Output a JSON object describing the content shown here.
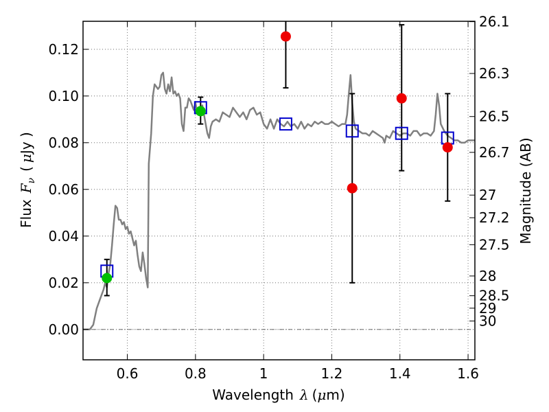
{
  "chart_data": {
    "type": "scatter",
    "xlabel_text": "Wavelength",
    "xlabel_symbol": "λ",
    "xlabel_unit_open": "(",
    "xlabel_unit_mu": "μ",
    "xlabel_unit_rest": "m)",
    "ylabel_text": "Flux",
    "ylabel_symbol": "F",
    "ylabel_sub": "ν",
    "ylabel_unit_open": "(",
    "ylabel_unit_mu": "μ",
    "ylabel_unit_rest": "Jy )",
    "y2label": "Magnitude (AB)",
    "xlim": [
      0.47,
      1.62
    ],
    "ylim": [
      -0.013,
      0.132
    ],
    "grid": true,
    "xticks": [
      0.6,
      0.8,
      1.0,
      1.2,
      1.4,
      1.6
    ],
    "xtick_labels": [
      "0.6",
      "0.8",
      "1",
      "1.2",
      "1.4",
      "1.6"
    ],
    "yticks": [
      0.0,
      0.02,
      0.04,
      0.06,
      0.08,
      0.1,
      0.12
    ],
    "ytick_labels": [
      "0.00",
      "0.02",
      "0.04",
      "0.06",
      "0.08",
      "0.10",
      "0.12"
    ],
    "mag_ticks": [
      {
        "label": "26.1",
        "mag": 26.1
      },
      {
        "label": "26.3",
        "mag": 26.3
      },
      {
        "label": "26.5",
        "mag": 26.5
      },
      {
        "label": "26.7",
        "mag": 26.7
      },
      {
        "label": "27",
        "mag": 27.0
      },
      {
        "label": "27.2",
        "mag": 27.2
      },
      {
        "label": "27.5",
        "mag": 27.5
      },
      {
        "label": "28",
        "mag": 28.0
      },
      {
        "label": "28.5",
        "mag": 28.5
      },
      {
        "label": "29",
        "mag": 29.0
      },
      {
        "label": "30",
        "mag": 30.0
      }
    ],
    "zero_line": 0.0,
    "colors": {
      "sed": "#808080",
      "model_box": "#0000cc",
      "detection": "#00c000",
      "nondetection": "#ee0000",
      "errorbar": "#000000",
      "grid": "#555555"
    },
    "sed_model": [
      [
        0.47,
        0.0
      ],
      [
        0.49,
        0.0
      ],
      [
        0.5,
        0.002
      ],
      [
        0.51,
        0.009
      ],
      [
        0.52,
        0.013
      ],
      [
        0.53,
        0.017
      ],
      [
        0.535,
        0.02
      ],
      [
        0.54,
        0.018
      ],
      [
        0.545,
        0.024
      ],
      [
        0.55,
        0.028
      ],
      [
        0.555,
        0.036
      ],
      [
        0.56,
        0.045
      ],
      [
        0.565,
        0.053
      ],
      [
        0.57,
        0.052
      ],
      [
        0.575,
        0.047
      ],
      [
        0.58,
        0.047
      ],
      [
        0.585,
        0.045
      ],
      [
        0.59,
        0.046
      ],
      [
        0.595,
        0.043
      ],
      [
        0.6,
        0.044
      ],
      [
        0.605,
        0.041
      ],
      [
        0.61,
        0.042
      ],
      [
        0.615,
        0.039
      ],
      [
        0.62,
        0.036
      ],
      [
        0.625,
        0.038
      ],
      [
        0.63,
        0.032
      ],
      [
        0.635,
        0.027
      ],
      [
        0.64,
        0.025
      ],
      [
        0.645,
        0.033
      ],
      [
        0.65,
        0.028
      ],
      [
        0.655,
        0.022
      ],
      [
        0.66,
        0.018
      ],
      [
        0.663,
        0.071
      ],
      [
        0.67,
        0.084
      ],
      [
        0.675,
        0.1
      ],
      [
        0.68,
        0.105
      ],
      [
        0.685,
        0.104
      ],
      [
        0.69,
        0.103
      ],
      [
        0.695,
        0.104
      ],
      [
        0.7,
        0.109
      ],
      [
        0.705,
        0.11
      ],
      [
        0.71,
        0.103
      ],
      [
        0.715,
        0.101
      ],
      [
        0.72,
        0.105
      ],
      [
        0.725,
        0.102
      ],
      [
        0.73,
        0.108
      ],
      [
        0.735,
        0.101
      ],
      [
        0.74,
        0.102
      ],
      [
        0.745,
        0.1
      ],
      [
        0.75,
        0.101
      ],
      [
        0.755,
        0.099
      ],
      [
        0.76,
        0.088
      ],
      [
        0.765,
        0.085
      ],
      [
        0.77,
        0.095
      ],
      [
        0.775,
        0.095
      ],
      [
        0.78,
        0.099
      ],
      [
        0.785,
        0.098
      ],
      [
        0.79,
        0.096
      ],
      [
        0.795,
        0.094
      ],
      [
        0.8,
        0.097
      ],
      [
        0.805,
        0.093
      ],
      [
        0.81,
        0.095
      ],
      [
        0.815,
        0.094
      ],
      [
        0.82,
        0.096
      ],
      [
        0.825,
        0.092
      ],
      [
        0.83,
        0.088
      ],
      [
        0.835,
        0.084
      ],
      [
        0.84,
        0.082
      ],
      [
        0.845,
        0.087
      ],
      [
        0.85,
        0.089
      ],
      [
        0.86,
        0.09
      ],
      [
        0.87,
        0.089
      ],
      [
        0.88,
        0.093
      ],
      [
        0.89,
        0.092
      ],
      [
        0.9,
        0.091
      ],
      [
        0.91,
        0.095
      ],
      [
        0.92,
        0.093
      ],
      [
        0.93,
        0.091
      ],
      [
        0.94,
        0.093
      ],
      [
        0.95,
        0.09
      ],
      [
        0.96,
        0.094
      ],
      [
        0.97,
        0.095
      ],
      [
        0.98,
        0.092
      ],
      [
        0.99,
        0.093
      ],
      [
        1.0,
        0.088
      ],
      [
        1.01,
        0.086
      ],
      [
        1.02,
        0.09
      ],
      [
        1.03,
        0.086
      ],
      [
        1.04,
        0.09
      ],
      [
        1.05,
        0.088
      ],
      [
        1.06,
        0.087
      ],
      [
        1.07,
        0.089
      ],
      [
        1.08,
        0.087
      ],
      [
        1.09,
        0.088
      ],
      [
        1.1,
        0.086
      ],
      [
        1.11,
        0.089
      ],
      [
        1.12,
        0.086
      ],
      [
        1.13,
        0.088
      ],
      [
        1.14,
        0.087
      ],
      [
        1.15,
        0.089
      ],
      [
        1.16,
        0.088
      ],
      [
        1.17,
        0.089
      ],
      [
        1.18,
        0.088
      ],
      [
        1.19,
        0.088
      ],
      [
        1.2,
        0.089
      ],
      [
        1.21,
        0.088
      ],
      [
        1.22,
        0.087
      ],
      [
        1.23,
        0.088
      ],
      [
        1.24,
        0.088
      ],
      [
        1.245,
        0.092
      ],
      [
        1.25,
        0.101
      ],
      [
        1.255,
        0.109
      ],
      [
        1.26,
        0.097
      ],
      [
        1.265,
        0.089
      ],
      [
        1.27,
        0.086
      ],
      [
        1.28,
        0.085
      ],
      [
        1.29,
        0.084
      ],
      [
        1.3,
        0.084
      ],
      [
        1.31,
        0.083
      ],
      [
        1.32,
        0.085
      ],
      [
        1.33,
        0.084
      ],
      [
        1.34,
        0.083
      ],
      [
        1.35,
        0.082
      ],
      [
        1.355,
        0.08
      ],
      [
        1.36,
        0.083
      ],
      [
        1.37,
        0.082
      ],
      [
        1.38,
        0.085
      ],
      [
        1.39,
        0.084
      ],
      [
        1.4,
        0.083
      ],
      [
        1.41,
        0.084
      ],
      [
        1.42,
        0.084
      ],
      [
        1.43,
        0.083
      ],
      [
        1.44,
        0.085
      ],
      [
        1.45,
        0.085
      ],
      [
        1.46,
        0.083
      ],
      [
        1.47,
        0.084
      ],
      [
        1.48,
        0.084
      ],
      [
        1.49,
        0.083
      ],
      [
        1.5,
        0.085
      ],
      [
        1.505,
        0.092
      ],
      [
        1.51,
        0.101
      ],
      [
        1.515,
        0.096
      ],
      [
        1.52,
        0.088
      ],
      [
        1.53,
        0.085
      ],
      [
        1.54,
        0.083
      ],
      [
        1.55,
        0.082
      ],
      [
        1.56,
        0.081
      ],
      [
        1.57,
        0.081
      ],
      [
        1.58,
        0.08
      ],
      [
        1.59,
        0.08
      ],
      [
        1.6,
        0.081
      ],
      [
        1.61,
        0.081
      ],
      [
        1.62,
        0.081
      ]
    ],
    "model_fluxes": [
      {
        "x": 0.54,
        "y": 0.025
      },
      {
        "x": 0.815,
        "y": 0.095
      },
      {
        "x": 1.065,
        "y": 0.088
      },
      {
        "x": 1.26,
        "y": 0.085
      },
      {
        "x": 1.405,
        "y": 0.084
      },
      {
        "x": 1.54,
        "y": 0.082
      }
    ],
    "observed_detections": [
      {
        "x": 0.54,
        "y": 0.022,
        "yerr_low": 0.0145,
        "yerr_high": 0.03
      },
      {
        "x": 0.815,
        "y": 0.0935,
        "yerr_low": 0.088,
        "yerr_high": 0.0995
      }
    ],
    "observed_low_significance": [
      {
        "x": 1.065,
        "y": 0.1255,
        "yerr_low": 0.1035,
        "yerr_high": 0.1325
      },
      {
        "x": 1.26,
        "y": 0.0605,
        "yerr_low": 0.02,
        "yerr_high": 0.101
      },
      {
        "x": 1.405,
        "y": 0.099,
        "yerr_low": 0.068,
        "yerr_high": 0.1305
      },
      {
        "x": 1.54,
        "y": 0.078,
        "yerr_low": 0.055,
        "yerr_high": 0.101
      }
    ]
  }
}
